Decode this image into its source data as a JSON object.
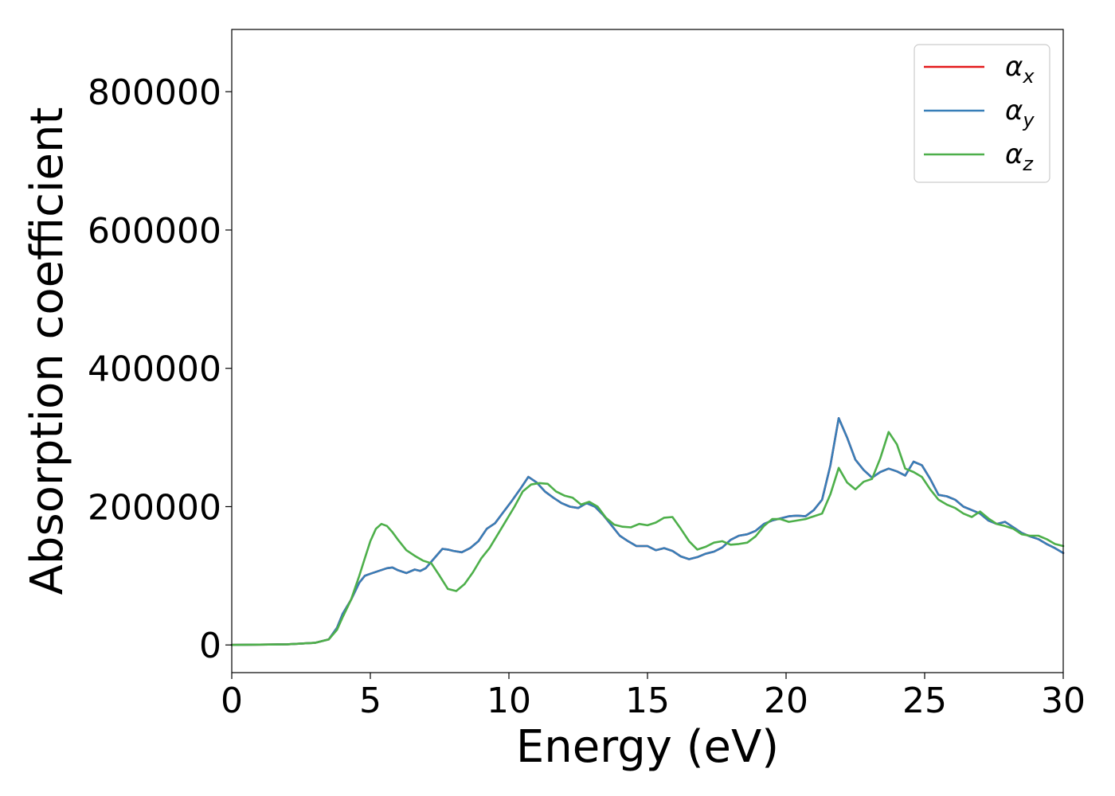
{
  "chart_data": {
    "type": "line",
    "title": "",
    "xlabel": "Energy (eV)",
    "ylabel": "Absorption coefficient",
    "xlim": [
      0,
      30
    ],
    "ylim": [
      -40000,
      890000
    ],
    "xticks": [
      0,
      5,
      10,
      15,
      20,
      25,
      30
    ],
    "yticks": [
      0,
      200000,
      400000,
      600000,
      800000
    ],
    "grid": false,
    "legend_position": "top-right",
    "series": [
      {
        "name": "α_x",
        "symbol": "α",
        "subscript": "x",
        "color": "#e41a1c",
        "x": [
          0,
          1,
          2,
          3,
          3.5,
          3.8,
          4.0,
          4.3,
          4.6,
          4.8,
          5.0,
          5.3,
          5.6,
          5.8,
          6.0,
          6.3,
          6.6,
          6.8,
          7.0,
          7.3,
          7.6,
          7.8,
          8.0,
          8.3,
          8.6,
          8.9,
          9.2,
          9.5,
          9.8,
          10.1,
          10.4,
          10.7,
          11.0,
          11.3,
          11.6,
          11.9,
          12.2,
          12.5,
          12.8,
          13.1,
          13.4,
          13.7,
          14.0,
          14.3,
          14.6,
          15.0,
          15.3,
          15.6,
          15.9,
          16.2,
          16.5,
          16.8,
          17.1,
          17.4,
          17.7,
          18.0,
          18.3,
          18.6,
          18.9,
          19.2,
          19.5,
          19.8,
          20.1,
          20.4,
          20.7,
          21.0,
          21.3,
          21.6,
          21.9,
          22.2,
          22.5,
          22.8,
          23.1,
          23.4,
          23.7,
          24.0,
          24.3,
          24.6,
          24.9,
          25.2,
          25.5,
          25.8,
          26.1,
          26.4,
          26.7,
          27.0,
          27.3,
          27.6,
          27.9,
          28.2,
          28.5,
          28.8,
          29.1,
          29.4,
          29.7,
          30.0
        ],
        "y": [
          0,
          500,
          1000,
          3000,
          8000,
          25000,
          45000,
          65000,
          90000,
          100000,
          103000,
          107000,
          111000,
          112000,
          108000,
          104000,
          109000,
          107000,
          111000,
          125000,
          139000,
          138000,
          136000,
          134000,
          140000,
          150000,
          168000,
          176000,
          192000,
          208000,
          225000,
          243000,
          235000,
          222000,
          213000,
          205000,
          200000,
          198000,
          205000,
          200000,
          188000,
          173000,
          158000,
          150000,
          143000,
          143000,
          137000,
          140000,
          136000,
          128000,
          124000,
          127000,
          132000,
          135000,
          141000,
          152000,
          158000,
          160000,
          165000,
          175000,
          180000,
          183000,
          186000,
          187000,
          186000,
          195000,
          210000,
          260000,
          328000,
          300000,
          268000,
          253000,
          242000,
          250000,
          255000,
          251000,
          245000,
          265000,
          260000,
          240000,
          217000,
          215000,
          210000,
          200000,
          195000,
          190000,
          180000,
          175000,
          178000,
          170000,
          162000,
          157000,
          153000,
          146000,
          140000,
          133000
        ]
      },
      {
        "name": "α_y",
        "symbol": "α",
        "subscript": "y",
        "color": "#377eb8",
        "x": [
          0,
          1,
          2,
          3,
          3.5,
          3.8,
          4.0,
          4.3,
          4.6,
          4.8,
          5.0,
          5.3,
          5.6,
          5.8,
          6.0,
          6.3,
          6.6,
          6.8,
          7.0,
          7.3,
          7.6,
          7.8,
          8.0,
          8.3,
          8.6,
          8.9,
          9.2,
          9.5,
          9.8,
          10.1,
          10.4,
          10.7,
          11.0,
          11.3,
          11.6,
          11.9,
          12.2,
          12.5,
          12.8,
          13.1,
          13.4,
          13.7,
          14.0,
          14.3,
          14.6,
          15.0,
          15.3,
          15.6,
          15.9,
          16.2,
          16.5,
          16.8,
          17.1,
          17.4,
          17.7,
          18.0,
          18.3,
          18.6,
          18.9,
          19.2,
          19.5,
          19.8,
          20.1,
          20.4,
          20.7,
          21.0,
          21.3,
          21.6,
          21.9,
          22.2,
          22.5,
          22.8,
          23.1,
          23.4,
          23.7,
          24.0,
          24.3,
          24.6,
          24.9,
          25.2,
          25.5,
          25.8,
          26.1,
          26.4,
          26.7,
          27.0,
          27.3,
          27.6,
          27.9,
          28.2,
          28.5,
          28.8,
          29.1,
          29.4,
          29.7,
          30.0
        ],
        "y": [
          0,
          500,
          1000,
          3000,
          8000,
          25000,
          45000,
          65000,
          90000,
          100000,
          103000,
          107000,
          111000,
          112000,
          108000,
          104000,
          109000,
          107000,
          111000,
          125000,
          139000,
          138000,
          136000,
          134000,
          140000,
          150000,
          168000,
          176000,
          192000,
          208000,
          225000,
          243000,
          235000,
          222000,
          213000,
          205000,
          200000,
          198000,
          205000,
          200000,
          188000,
          173000,
          158000,
          150000,
          143000,
          143000,
          137000,
          140000,
          136000,
          128000,
          124000,
          127000,
          132000,
          135000,
          141000,
          152000,
          158000,
          160000,
          165000,
          175000,
          180000,
          183000,
          186000,
          187000,
          186000,
          195000,
          210000,
          260000,
          328000,
          300000,
          268000,
          253000,
          242000,
          250000,
          255000,
          251000,
          245000,
          265000,
          260000,
          240000,
          217000,
          215000,
          210000,
          200000,
          195000,
          190000,
          180000,
          175000,
          178000,
          170000,
          162000,
          157000,
          153000,
          146000,
          140000,
          133000
        ]
      },
      {
        "name": "α_z",
        "symbol": "α",
        "subscript": "z",
        "color": "#4daf4a",
        "x": [
          0,
          1,
          2,
          3,
          3.5,
          3.8,
          4.0,
          4.3,
          4.6,
          4.8,
          5.0,
          5.2,
          5.4,
          5.6,
          5.8,
          6.0,
          6.3,
          6.6,
          6.9,
          7.2,
          7.5,
          7.8,
          8.1,
          8.4,
          8.7,
          9.0,
          9.3,
          9.6,
          9.9,
          10.2,
          10.5,
          10.8,
          11.1,
          11.4,
          11.7,
          12.0,
          12.3,
          12.6,
          12.9,
          13.2,
          13.5,
          13.8,
          14.1,
          14.4,
          14.7,
          15.0,
          15.3,
          15.6,
          15.9,
          16.2,
          16.5,
          16.8,
          17.1,
          17.4,
          17.7,
          18.0,
          18.3,
          18.6,
          18.9,
          19.2,
          19.5,
          19.8,
          20.1,
          20.4,
          20.7,
          21.0,
          21.3,
          21.6,
          21.9,
          22.2,
          22.5,
          22.8,
          23.1,
          23.4,
          23.7,
          24.0,
          24.3,
          24.6,
          24.9,
          25.2,
          25.5,
          25.8,
          26.1,
          26.4,
          26.7,
          27.0,
          27.3,
          27.6,
          27.9,
          28.2,
          28.5,
          28.8,
          29.1,
          29.4,
          29.7,
          30.0
        ],
        "y": [
          0,
          500,
          1000,
          3000,
          8000,
          22000,
          40000,
          65000,
          100000,
          125000,
          150000,
          168000,
          175000,
          172000,
          163000,
          152000,
          137000,
          129000,
          122000,
          118000,
          100000,
          81000,
          78000,
          88000,
          105000,
          125000,
          140000,
          160000,
          180000,
          200000,
          222000,
          232000,
          234000,
          233000,
          222000,
          216000,
          213000,
          203000,
          207000,
          200000,
          184000,
          174000,
          171000,
          170000,
          175000,
          173000,
          177000,
          184000,
          185000,
          168000,
          150000,
          138000,
          142000,
          148000,
          150000,
          145000,
          146000,
          148000,
          157000,
          172000,
          182000,
          182000,
          178000,
          180000,
          182000,
          186000,
          190000,
          218000,
          256000,
          235000,
          225000,
          236000,
          240000,
          270000,
          308000,
          290000,
          255000,
          250000,
          243000,
          225000,
          210000,
          203000,
          198000,
          190000,
          185000,
          193000,
          183000,
          175000,
          172000,
          168000,
          160000,
          158000,
          158000,
          153000,
          146000,
          143000
        ]
      }
    ]
  }
}
